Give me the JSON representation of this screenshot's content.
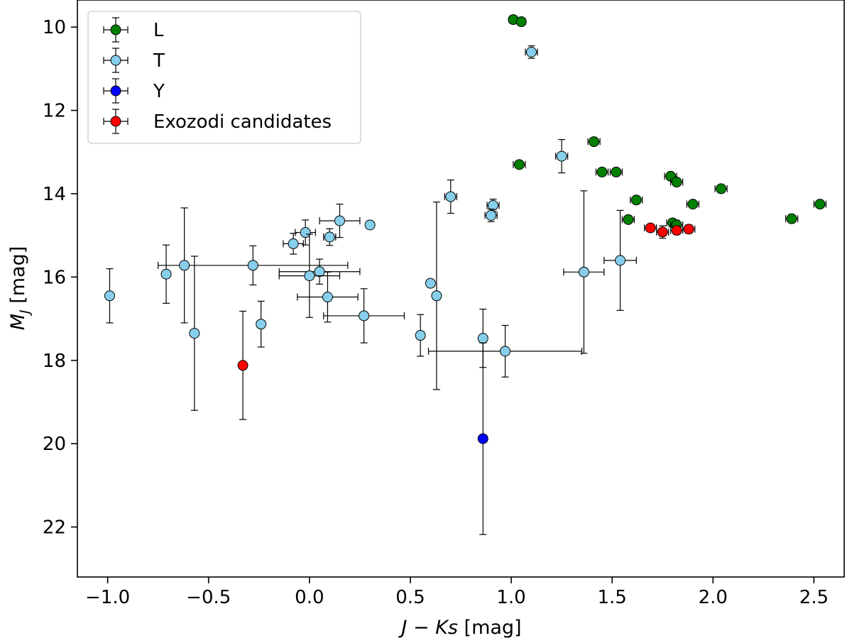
{
  "chart_data": {
    "type": "scatter",
    "title": "",
    "xlabel": "J − Ks [mag]",
    "ylabel": "M_J [mag]",
    "xlabel_parts": {
      "main": "J − Ks",
      "unit": "[mag]"
    },
    "ylabel_parts": {
      "symbol": "M",
      "sub": "J",
      "unit": "[mag]"
    },
    "xlim": [
      -1.15,
      2.65
    ],
    "ylim": [
      23.2,
      9.35
    ],
    "y_inverted": true,
    "xticks": [
      -1.0,
      -0.5,
      0.0,
      0.5,
      1.0,
      1.5,
      2.0,
      2.5
    ],
    "xtick_labels": [
      "−1.0",
      "−0.5",
      "0.0",
      "0.5",
      "1.0",
      "1.5",
      "2.0",
      "2.5"
    ],
    "yticks": [
      10,
      12,
      14,
      16,
      18,
      20,
      22
    ],
    "ytick_labels": [
      "10",
      "12",
      "14",
      "16",
      "18",
      "20",
      "22"
    ],
    "legend_position": "top-left",
    "series": [
      {
        "name": "L",
        "color": "#008000",
        "points": [
          {
            "x": 1.01,
            "y": 9.82,
            "xerr": 0.02,
            "yerr": 0.05
          },
          {
            "x": 1.05,
            "y": 9.87,
            "xerr": 0.02,
            "yerr": 0.05
          },
          {
            "x": 1.04,
            "y": 13.3,
            "xerr": 0.03,
            "yerr": 0.06
          },
          {
            "x": 1.41,
            "y": 12.75,
            "xerr": 0.03,
            "yerr": 0.06
          },
          {
            "x": 1.45,
            "y": 13.48,
            "xerr": 0.03,
            "yerr": 0.06
          },
          {
            "x": 1.52,
            "y": 13.48,
            "xerr": 0.03,
            "yerr": 0.06
          },
          {
            "x": 1.79,
            "y": 13.58,
            "xerr": 0.03,
            "yerr": 0.06
          },
          {
            "x": 1.82,
            "y": 13.72,
            "xerr": 0.03,
            "yerr": 0.06
          },
          {
            "x": 2.04,
            "y": 13.88,
            "xerr": 0.03,
            "yerr": 0.06
          },
          {
            "x": 1.62,
            "y": 14.15,
            "xerr": 0.03,
            "yerr": 0.06
          },
          {
            "x": 1.9,
            "y": 14.25,
            "xerr": 0.03,
            "yerr": 0.06
          },
          {
            "x": 2.53,
            "y": 14.25,
            "xerr": 0.03,
            "yerr": 0.06
          },
          {
            "x": 1.58,
            "y": 14.62,
            "xerr": 0.03,
            "yerr": 0.06
          },
          {
            "x": 1.8,
            "y": 14.7,
            "xerr": 0.03,
            "yerr": 0.06
          },
          {
            "x": 1.82,
            "y": 14.75,
            "xerr": 0.03,
            "yerr": 0.06
          },
          {
            "x": 2.39,
            "y": 14.6,
            "xerr": 0.03,
            "yerr": 0.06
          }
        ]
      },
      {
        "name": "T",
        "color": "#87ceeb",
        "points": [
          {
            "x": 1.1,
            "y": 10.6,
            "xerr": 0.03,
            "yerr": 0.15
          },
          {
            "x": 1.25,
            "y": 13.1,
            "xerr": 0.03,
            "yerr": 0.4
          },
          {
            "x": 0.7,
            "y": 14.07,
            "xerr": 0.03,
            "yerr": 0.4
          },
          {
            "x": 0.91,
            "y": 14.28,
            "xerr": 0.03,
            "yerr": 0.15
          },
          {
            "x": 0.9,
            "y": 14.52,
            "xerr": 0.03,
            "yerr": 0.15
          },
          {
            "x": 0.15,
            "y": 14.65,
            "xerr": 0.1,
            "yerr": 0.4
          },
          {
            "x": 0.3,
            "y": 14.75,
            "xerr": 0.0,
            "yerr": 0.0
          },
          {
            "x": -0.02,
            "y": 14.93,
            "xerr": 0.05,
            "yerr": 0.3
          },
          {
            "x": 0.1,
            "y": 15.04,
            "xerr": 0.03,
            "yerr": 0.2
          },
          {
            "x": -0.08,
            "y": 15.2,
            "xerr": 0.05,
            "yerr": 0.25
          },
          {
            "x": -0.28,
            "y": 15.72,
            "xerr": 0.47,
            "yerr": 0.47
          },
          {
            "x": -0.62,
            "y": 15.72,
            "xerr": 0.0,
            "yerr": 1.38
          },
          {
            "x": 0.05,
            "y": 15.87,
            "xerr": 0.2,
            "yerr": 0.3
          },
          {
            "x": -0.71,
            "y": 15.93,
            "xerr": 0.0,
            "yerr": 0.7
          },
          {
            "x": 0.0,
            "y": 15.97,
            "xerr": 0.15,
            "yerr": 1.0
          },
          {
            "x": 1.54,
            "y": 15.6,
            "xerr": 0.08,
            "yerr": 1.2
          },
          {
            "x": 1.36,
            "y": 15.88,
            "xerr": 0.1,
            "yerr": 1.95
          },
          {
            "x": 0.6,
            "y": 16.15,
            "xerr": 0.0,
            "yerr": 0.0
          },
          {
            "x": 0.63,
            "y": 16.45,
            "xerr": 0.0,
            "yerr": 2.25
          },
          {
            "x": -0.99,
            "y": 16.45,
            "xerr": 0.0,
            "yerr": 0.65
          },
          {
            "x": 0.09,
            "y": 16.48,
            "xerr": 0.15,
            "yerr": 0.6
          },
          {
            "x": 0.27,
            "y": 16.93,
            "xerr": 0.2,
            "yerr": 0.65
          },
          {
            "x": -0.24,
            "y": 17.13,
            "xerr": 0.0,
            "yerr": 0.55
          },
          {
            "x": -0.57,
            "y": 17.35,
            "xerr": 0.0,
            "yerr": 1.85
          },
          {
            "x": 0.55,
            "y": 17.4,
            "xerr": 0.0,
            "yerr": 0.5
          },
          {
            "x": 0.86,
            "y": 17.47,
            "xerr": 0.0,
            "yerr": 0.7
          },
          {
            "x": 0.97,
            "y": 17.78,
            "xerr": 0.38,
            "yerr": 0.62
          }
        ]
      },
      {
        "name": "Y",
        "color": "#0000ff",
        "points": [
          {
            "x": 0.86,
            "y": 19.88,
            "xerr": 0.0,
            "yerr": 2.3
          }
        ]
      },
      {
        "name": "Exozodi candidates",
        "color": "#ff0000",
        "points": [
          {
            "x": -0.33,
            "y": 18.12,
            "xerr": 0.0,
            "yerr": 1.3
          },
          {
            "x": 1.69,
            "y": 14.82,
            "xerr": 0.03,
            "yerr": 0.08
          },
          {
            "x": 1.75,
            "y": 14.92,
            "xerr": 0.03,
            "yerr": 0.15
          },
          {
            "x": 1.82,
            "y": 14.88,
            "xerr": 0.03,
            "yerr": 0.1
          },
          {
            "x": 1.88,
            "y": 14.85,
            "xerr": 0.03,
            "yerr": 0.1
          }
        ]
      }
    ],
    "legend": [
      "L",
      "T",
      "Y",
      "Exozodi candidates"
    ]
  }
}
